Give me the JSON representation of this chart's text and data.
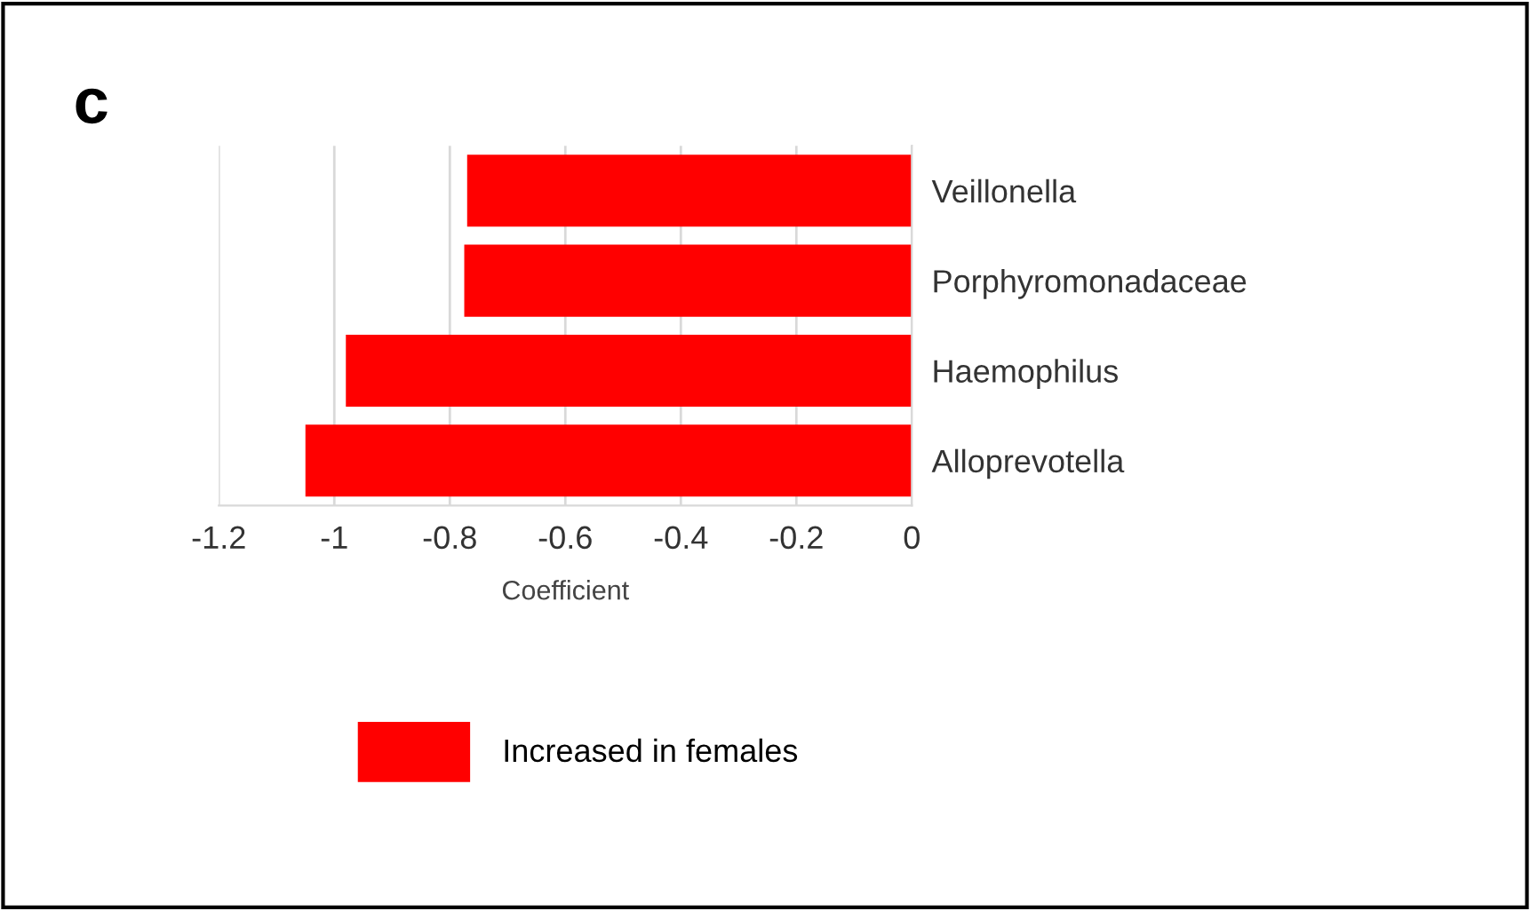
{
  "chart_data": {
    "type": "bar",
    "orientation": "horizontal",
    "categories": [
      "Veillonella",
      "Porphyromonadaceae",
      "Haemophilus",
      "Alloprevotella"
    ],
    "series": [
      {
        "name": "Increased in females",
        "color": "#ff0000",
        "values": [
          -0.77,
          -0.775,
          -0.98,
          -1.05
        ]
      }
    ],
    "xlabel": "Coefficient",
    "xlim": [
      -1.2,
      0
    ],
    "xticks": [
      -1.2,
      -1,
      -0.8,
      -0.6,
      -0.4,
      -0.2,
      0
    ],
    "grid": "x",
    "legend": "bottom left",
    "annotations": [
      "c"
    ]
  }
}
